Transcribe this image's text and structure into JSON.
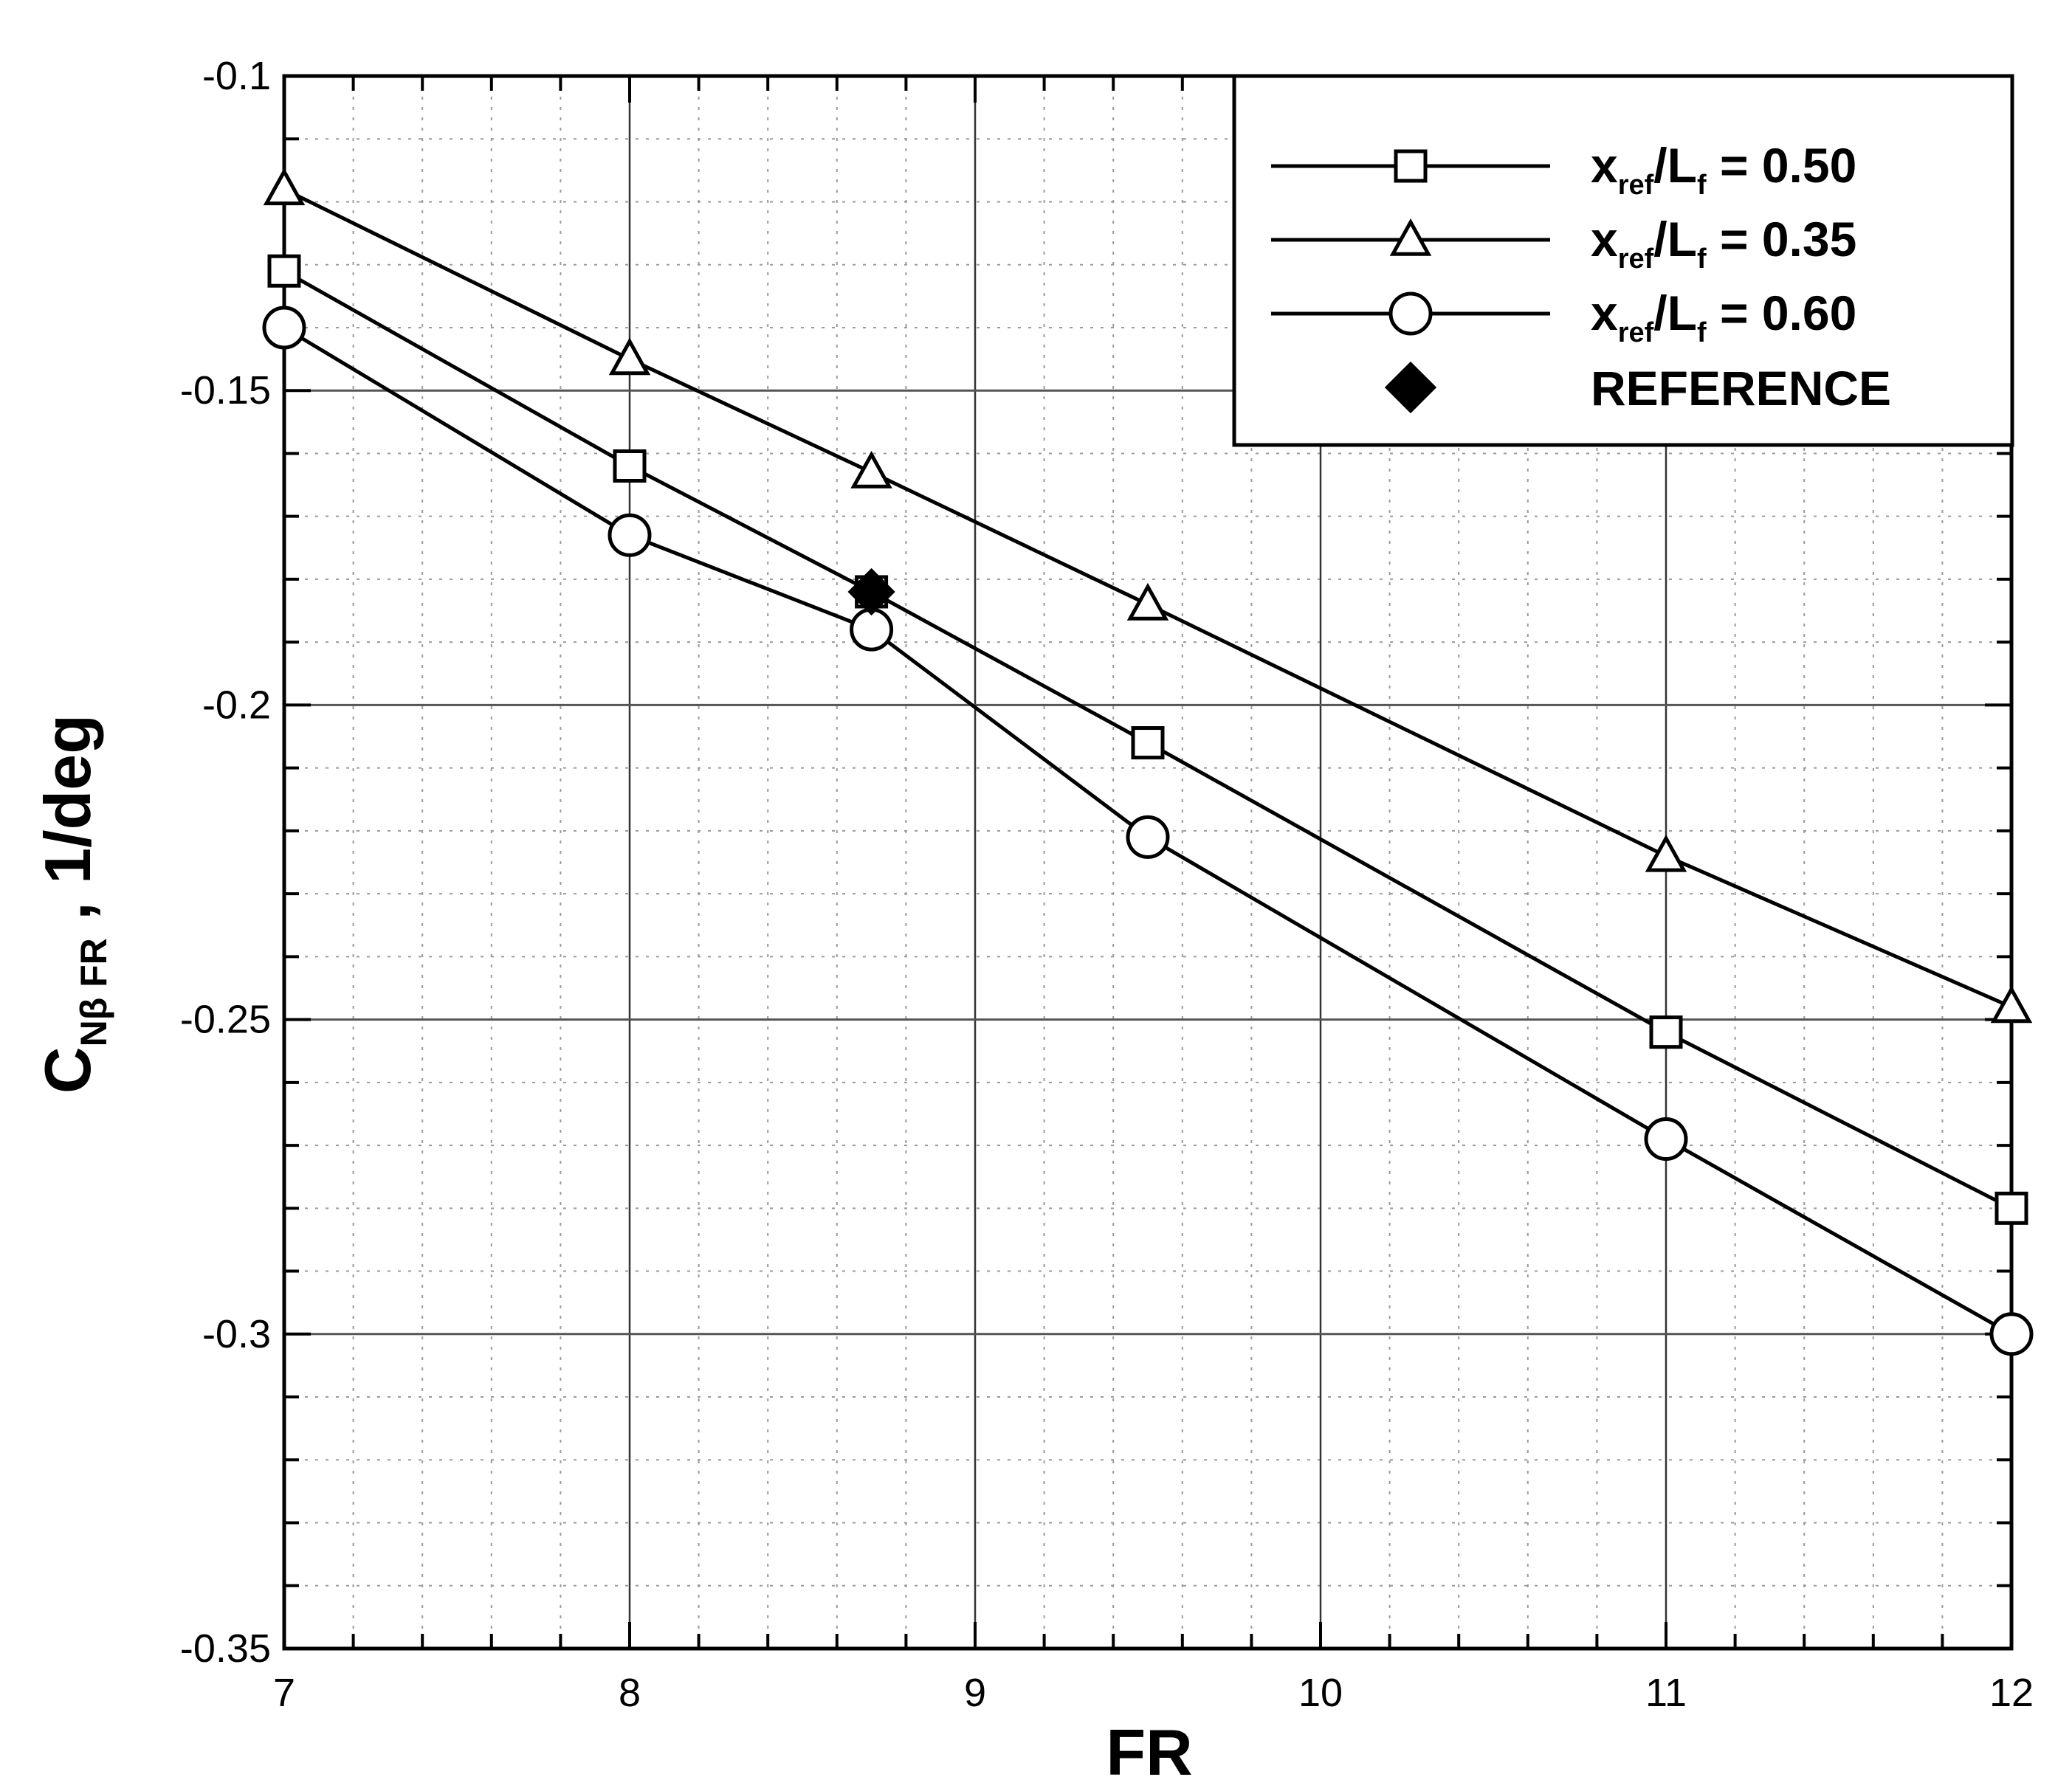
{
  "chart_data": {
    "type": "line",
    "xlabel": "FR",
    "ylabel": {
      "main": "C",
      "sub": "Nβ FR",
      "unit": " , 1/deg"
    },
    "xlim": [
      7,
      12
    ],
    "ylim": [
      -0.35,
      -0.1
    ],
    "x_ticks": [
      "7",
      "8",
      "9",
      "10",
      "11",
      "12"
    ],
    "y_ticks": [
      "-0.1",
      "-0.15",
      "-0.2",
      "-0.25",
      "-0.3",
      "-0.35"
    ],
    "grid": true,
    "legend_position": "top-right",
    "series": [
      {
        "legend": {
          "main": "x",
          "sub1": "ref",
          "mid": "/L",
          "sub2": "f",
          "tail": " = 0.50"
        },
        "marker": "square",
        "x": [
          7,
          8,
          8.7,
          9.5,
          11,
          12
        ],
        "y": [
          -0.131,
          -0.162,
          -0.182,
          -0.206,
          -0.252,
          -0.28
        ]
      },
      {
        "legend": {
          "main": "x",
          "sub1": "ref",
          "mid": "/L",
          "sub2": "f",
          "tail": " = 0.35"
        },
        "marker": "triangle",
        "x": [
          7,
          8,
          8.7,
          9.5,
          11,
          12
        ],
        "y": [
          -0.118,
          -0.145,
          -0.163,
          -0.184,
          -0.224,
          -0.248
        ]
      },
      {
        "legend": {
          "main": "x",
          "sub1": "ref",
          "mid": "/L",
          "sub2": "f",
          "tail": " = 0.60"
        },
        "marker": "circle",
        "x": [
          7,
          8,
          8.7,
          9.5,
          11,
          12
        ],
        "y": [
          -0.14,
          -0.173,
          -0.188,
          -0.221,
          -0.269,
          -0.3
        ]
      }
    ],
    "reference": {
      "legend": "REFERENCE",
      "marker": "diamond",
      "x": 8.7,
      "y": -0.182
    }
  }
}
